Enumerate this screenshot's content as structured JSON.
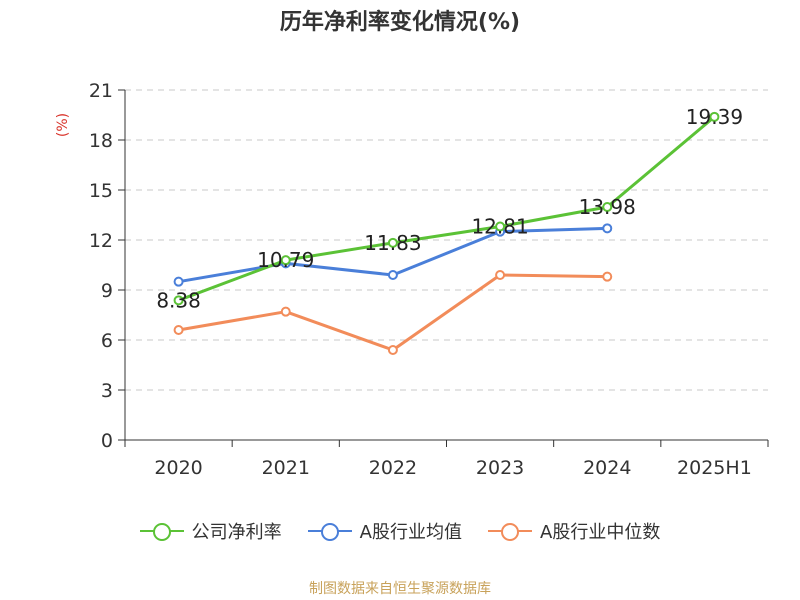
{
  "chart_data": {
    "type": "line",
    "title": "历年净利率变化情况(%)",
    "ylabel": "(%)",
    "xlabel": "",
    "categories": [
      "2020",
      "2021",
      "2022",
      "2023",
      "2024",
      "2025H1"
    ],
    "ylim": [
      0,
      21
    ],
    "yticks": [
      0,
      3,
      6,
      9,
      12,
      15,
      18,
      21
    ],
    "grid": true,
    "legend_position": "bottom",
    "series": [
      {
        "name": "公司净利率",
        "color": "#5bc236",
        "values": [
          8.38,
          10.79,
          11.83,
          12.81,
          13.98,
          19.39
        ],
        "labels": [
          "8.38",
          "10.79",
          "11.83",
          "12.81",
          "13.98",
          "19.39"
        ]
      },
      {
        "name": "A股行业均值",
        "color": "#4a7fd9",
        "values": [
          9.5,
          10.6,
          9.9,
          12.5,
          12.7,
          null
        ]
      },
      {
        "name": "A股行业中位数",
        "color": "#f28c5a",
        "values": [
          6.6,
          7.7,
          5.4,
          9.9,
          9.8,
          null
        ]
      }
    ]
  },
  "source": "制图数据来自恒生聚源数据库"
}
